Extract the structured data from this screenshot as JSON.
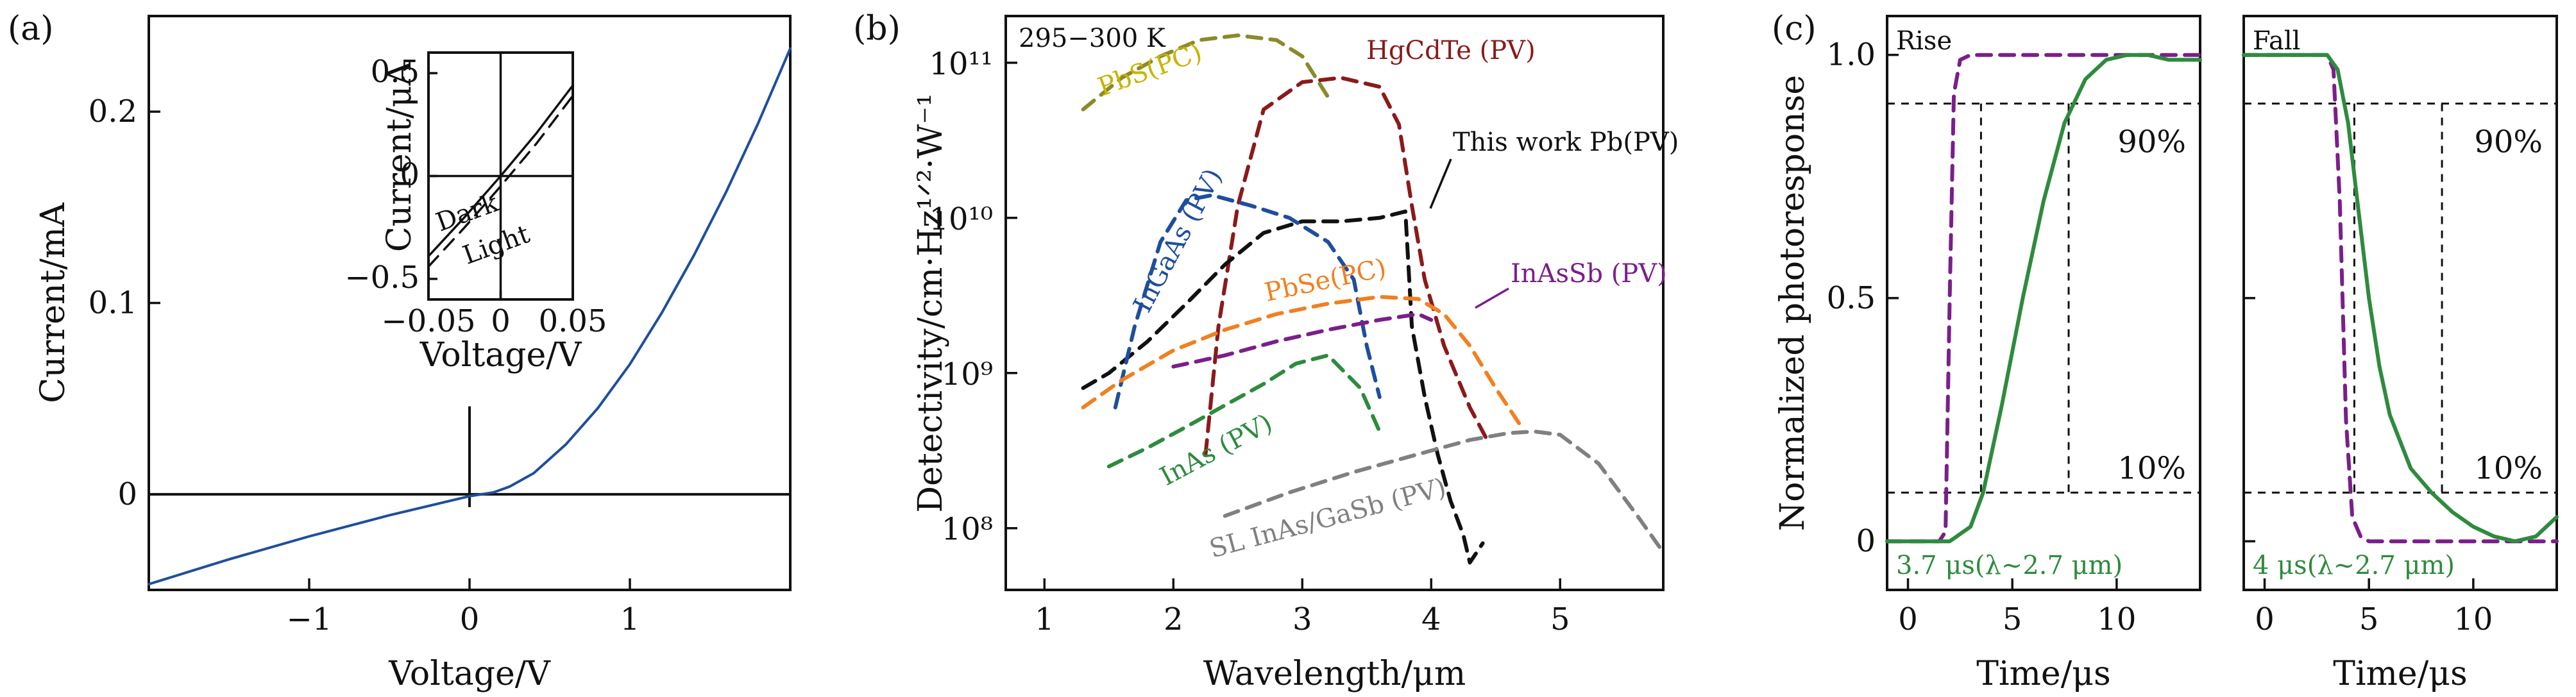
{
  "chart_data": [
    {
      "type": "line",
      "panel_label": "(a)",
      "xlabel": "Voltage/V",
      "ylabel": "Current/mA",
      "xlim": [
        -2.0,
        2.0
      ],
      "ylim": [
        -0.05,
        0.25
      ],
      "xticks": [
        {
          "v": -1,
          "label": "−1"
        },
        {
          "v": 0,
          "label": "0"
        },
        {
          "v": 1,
          "label": "1"
        }
      ],
      "yticks": [
        {
          "v": 0,
          "label": "0"
        },
        {
          "v": 0.1,
          "label": "0.1"
        },
        {
          "v": 0.2,
          "label": "0.2"
        }
      ],
      "series": [
        {
          "color": "#1f4e9c",
          "x": [
            -2.0,
            -1.5,
            -1.0,
            -0.5,
            0.0,
            0.15,
            0.25,
            0.4,
            0.6,
            0.8,
            1.0,
            1.2,
            1.4,
            1.6,
            1.8,
            2.0
          ],
          "y": [
            -0.047,
            -0.034,
            -0.022,
            -0.011,
            -0.001,
            0.001,
            0.004,
            0.011,
            0.026,
            0.045,
            0.068,
            0.095,
            0.125,
            0.158,
            0.194,
            0.233
          ]
        }
      ],
      "inset": {
        "xlabel": "Voltage/V",
        "ylabel": "Current/μA",
        "xlim": [
          -0.05,
          0.05
        ],
        "ylim": [
          -0.6,
          0.6
        ],
        "xticks": [
          {
            "v": -0.05,
            "label": "−0.05"
          },
          {
            "v": 0,
            "label": "0"
          },
          {
            "v": 0.05,
            "label": "0.05"
          }
        ],
        "yticks": [
          {
            "v": -0.5,
            "label": "−0.5"
          },
          {
            "v": 0,
            "label": "0"
          },
          {
            "v": 0.5,
            "label": "0.5"
          }
        ],
        "series": [
          {
            "name": "Dark",
            "dash": "solid",
            "x": [
              -0.05,
              -0.025,
              0.0,
              0.025,
              0.05
            ],
            "y": [
              -0.39,
              -0.2,
              0.0,
              0.21,
              0.44
            ]
          },
          {
            "name": "Light",
            "dash": "dashed",
            "x": [
              -0.05,
              -0.025,
              0.0,
              0.025,
              0.05
            ],
            "y": [
              -0.44,
              -0.25,
              -0.05,
              0.16,
              0.39
            ]
          }
        ]
      }
    },
    {
      "type": "line",
      "panel_label": "(b)",
      "xlabel": "Wavelength/μm",
      "ylabel": "Detectivity/cm·Hz¹ᐟ²·W⁻¹",
      "scale_y": "log",
      "xlim": [
        0.7,
        5.8
      ],
      "ylim": [
        40000000.0,
        200000000000.0
      ],
      "xticks": [
        {
          "v": 1,
          "label": "1"
        },
        {
          "v": 2,
          "label": "2"
        },
        {
          "v": 3,
          "label": "3"
        },
        {
          "v": 4,
          "label": "4"
        },
        {
          "v": 5,
          "label": "5"
        }
      ],
      "yticks": [
        {
          "v": 100000000.0,
          "label": "10⁸"
        },
        {
          "v": 1000000000.0,
          "label": "10⁹"
        },
        {
          "v": 10000000000.0,
          "label": "10¹⁰"
        },
        {
          "v": 100000000000.0,
          "label": "10¹¹"
        }
      ],
      "annotation": "295−300 K",
      "series": [
        {
          "name": "PbS(PC)",
          "color": "#8a8a2a",
          "dash": "dashed",
          "label_color": "#c8b400",
          "x": [
            1.3,
            1.6,
            1.9,
            2.2,
            2.5,
            2.8,
            3.0,
            3.2
          ],
          "y": [
            50000000000.0,
            80000000000.0,
            110000000000.0,
            140000000000.0,
            150000000000.0,
            140000000000.0,
            110000000000.0,
            60000000000.0
          ]
        },
        {
          "name": "HgCdTe (PV)",
          "color": "#8b1a1a",
          "dash": "dashed",
          "label_color": "#8b1a1a",
          "x": [
            2.25,
            2.35,
            2.5,
            2.7,
            3.0,
            3.3,
            3.6,
            3.75,
            3.85,
            3.95,
            4.1,
            4.3,
            4.45
          ],
          "y": [
            300000000.0,
            2000000000.0,
            12000000000.0,
            50000000000.0,
            75000000000.0,
            80000000000.0,
            70000000000.0,
            40000000000.0,
            12000000000.0,
            4000000000.0,
            1500000000.0,
            600000000.0,
            350000000.0
          ]
        },
        {
          "name": "This work Pb(PV)",
          "color": "#111111",
          "dash": "dashed",
          "label_color": "#111111",
          "x": [
            1.3,
            1.5,
            1.8,
            2.1,
            2.4,
            2.7,
            3.0,
            3.3,
            3.6,
            3.8,
            3.85,
            3.95,
            4.05,
            4.15,
            4.25,
            4.3,
            4.4
          ],
          "y": [
            800000000.0,
            1000000000.0,
            1600000000.0,
            2800000000.0,
            5000000000.0,
            8000000000.0,
            9500000000.0,
            9500000000.0,
            10000000000.0,
            11000000000.0,
            2000000000.0,
            700000000.0,
            300000000.0,
            150000000.0,
            90000000.0,
            60000000.0,
            80000000.0
          ]
        },
        {
          "name": "InGaAs (PV)",
          "color": "#1f4e9c",
          "dash": "dashed",
          "label_color": "#1f4e9c",
          "x": [
            1.55,
            1.7,
            1.9,
            2.1,
            2.3,
            2.6,
            2.9,
            3.2,
            3.4,
            3.5,
            3.6
          ],
          "y": [
            600000000.0,
            2000000000.0,
            7000000000.0,
            13000000000.0,
            14000000000.0,
            12000000000.0,
            10000000000.0,
            7000000000.0,
            4000000000.0,
            1500000000.0,
            700000000.0
          ]
        },
        {
          "name": "PbSe(PC)",
          "color": "#f08020",
          "dash": "dashed",
          "label_color": "#f08020",
          "x": [
            1.3,
            1.6,
            2.0,
            2.4,
            2.8,
            3.2,
            3.6,
            3.9,
            4.1,
            4.3,
            4.5,
            4.7
          ],
          "y": [
            600000000.0,
            900000000.0,
            1400000000.0,
            1900000000.0,
            2400000000.0,
            2800000000.0,
            3100000000.0,
            3000000000.0,
            2400000000.0,
            1500000000.0,
            800000000.0,
            450000000.0
          ]
        },
        {
          "name": "InAsSb (PV)",
          "color": "#7a1f8a",
          "dash": "dashed",
          "label_color": "#7a1f8a",
          "x": [
            2.0,
            2.4,
            2.8,
            3.2,
            3.6,
            3.9,
            4.0
          ],
          "y": [
            1100000000.0,
            1300000000.0,
            1600000000.0,
            1900000000.0,
            2200000000.0,
            2400000000.0,
            2200000000.0
          ]
        },
        {
          "name": "InAs (PV)",
          "color": "#2e8b3e",
          "dash": "dashed",
          "label_color": "#2e8b3e",
          "x": [
            1.5,
            1.8,
            2.1,
            2.4,
            2.7,
            2.95,
            3.2,
            3.45,
            3.6
          ],
          "y": [
            250000000.0,
            330000000.0,
            450000000.0,
            620000000.0,
            850000000.0,
            1150000000.0,
            1300000000.0,
            800000000.0,
            420000000.0
          ]
        },
        {
          "name": "SL InAs/GaSb (PV)",
          "color": "#808080",
          "dash": "dashed",
          "label_color": "#808080",
          "x": [
            2.4,
            2.9,
            3.4,
            3.9,
            4.3,
            4.6,
            4.8,
            5.0,
            5.3,
            5.6,
            5.8
          ],
          "y": [
            120000000.0,
            170000000.0,
            230000000.0,
            300000000.0,
            370000000.0,
            410000000.0,
            420000000.0,
            400000000.0,
            260000000.0,
            120000000.0,
            70000000.0
          ]
        }
      ]
    },
    {
      "type": "line",
      "panel_label": "(c)",
      "xlabel": "Time/μs",
      "ylabel": "Normalized photoresponse",
      "ylim": [
        -0.1,
        1.08
      ],
      "yticks": [
        {
          "v": 0,
          "label": "0"
        },
        {
          "v": 0.5,
          "label": "0.5"
        },
        {
          "v": 1.0,
          "label": "1.0"
        }
      ],
      "subplots": [
        {
          "title": "Rise",
          "xlim": [
            -1,
            14
          ],
          "xticks": [
            {
              "v": 0,
              "label": "0"
            },
            {
              "v": 5,
              "label": "5"
            },
            {
              "v": 10,
              "label": "10"
            }
          ],
          "annotation": "3.7 μs(λ~2.7 μm)",
          "level_labels": [
            "90%",
            "10%"
          ],
          "levels": [
            0.1,
            0.9
          ],
          "markers_x": [
            3.5,
            7.7
          ],
          "series": [
            {
              "color": "#7a1f8a",
              "dash": "dashed",
              "x": [
                -1,
                1.5,
                1.8,
                2.0,
                2.2,
                2.5,
                3.0,
                14
              ],
              "y": [
                0,
                0,
                0.02,
                0.5,
                0.92,
                0.99,
                1.0,
                1.0
              ]
            },
            {
              "color": "#2e8b3e",
              "dash": "solid",
              "x": [
                -1,
                2.0,
                3.0,
                3.6,
                4.5,
                5.5,
                6.5,
                7.5,
                8.5,
                9.5,
                10.5,
                11.5,
                12.5,
                14
              ],
              "y": [
                0,
                0,
                0.03,
                0.1,
                0.28,
                0.5,
                0.7,
                0.86,
                0.95,
                0.99,
                1.0,
                1.0,
                0.99,
                0.99
              ]
            }
          ]
        },
        {
          "title": "Fall",
          "xlim": [
            -1,
            14
          ],
          "xticks": [
            {
              "v": 0,
              "label": "0"
            },
            {
              "v": 5,
              "label": "5"
            },
            {
              "v": 10,
              "label": "10"
            }
          ],
          "annotation": "4 μs(λ~2.7 μm)",
          "level_labels": [
            "90%",
            "10%"
          ],
          "levels": [
            0.1,
            0.9
          ],
          "markers_x": [
            4.3,
            8.5
          ],
          "series": [
            {
              "color": "#7a1f8a",
              "dash": "dashed",
              "x": [
                -1,
                3.0,
                3.3,
                3.6,
                3.9,
                4.2,
                4.6,
                5.0,
                14
              ],
              "y": [
                1.0,
                1.0,
                0.97,
                0.7,
                0.25,
                0.05,
                0.01,
                0,
                0
              ]
            },
            {
              "color": "#2e8b3e",
              "dash": "solid",
              "x": [
                -1,
                3.0,
                3.5,
                4.0,
                4.5,
                5.0,
                5.5,
                6.0,
                7.0,
                8.0,
                9.0,
                10.0,
                11.0,
                12.0,
                13.0,
                14.0
              ],
              "y": [
                1.0,
                1.0,
                0.97,
                0.86,
                0.68,
                0.5,
                0.36,
                0.26,
                0.15,
                0.1,
                0.06,
                0.03,
                0.01,
                0.0,
                0.01,
                0.05
              ]
            }
          ]
        }
      ]
    }
  ]
}
